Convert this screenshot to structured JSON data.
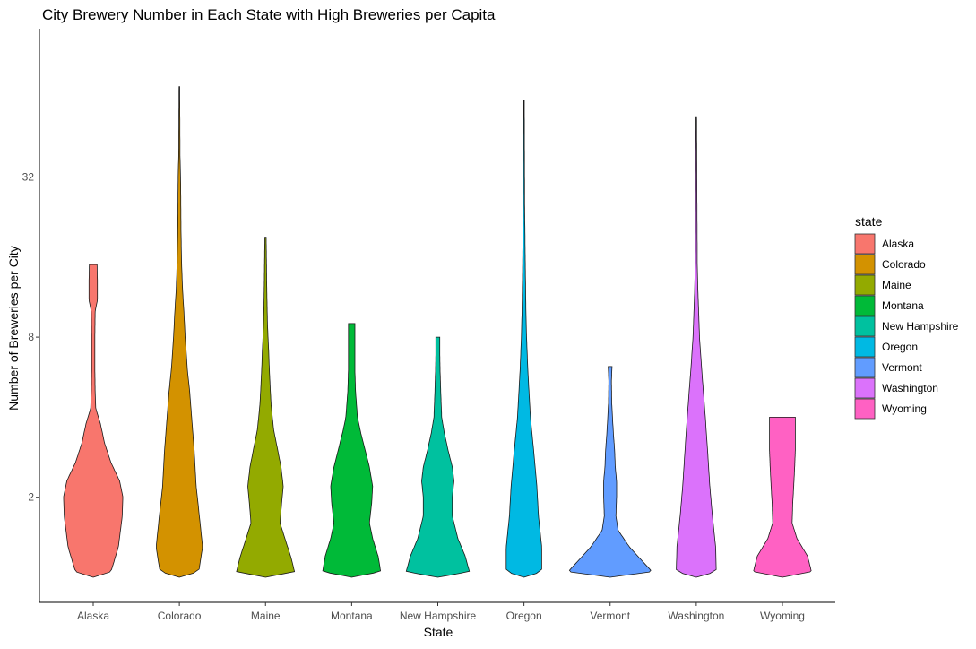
{
  "chart_data": {
    "type": "violin",
    "title": "City Brewery Number in Each State with High Breweries per Capita",
    "xlabel": "State",
    "ylabel": "Number of Breweries per City",
    "y_scale": "log2",
    "y_ticks": [
      {
        "value": 2,
        "label": "2"
      },
      {
        "value": 8,
        "label": "8"
      },
      {
        "value": 32,
        "label": "32"
      }
    ],
    "ylim": [
      0.85,
      80
    ],
    "legend": {
      "title": "state",
      "position": "right"
    },
    "series": [
      {
        "name": "Alaska",
        "color": "#F8766D",
        "max": 15,
        "profile": [
          [
            1,
            0.0
          ],
          [
            1.05,
            0.55
          ],
          [
            1.3,
            0.78
          ],
          [
            1.7,
            0.9
          ],
          [
            2.0,
            0.92
          ],
          [
            2.3,
            0.82
          ],
          [
            2.7,
            0.55
          ],
          [
            3.2,
            0.35
          ],
          [
            3.8,
            0.22
          ],
          [
            4.3,
            0.08
          ],
          [
            5,
            0.06
          ],
          [
            6,
            0.05
          ],
          [
            8,
            0.05
          ],
          [
            10,
            0.06
          ],
          [
            11,
            0.13
          ],
          [
            13,
            0.13
          ],
          [
            15,
            0.12
          ]
        ]
      },
      {
        "name": "Colorado",
        "color": "#D39200",
        "max": 70,
        "profile": [
          [
            1,
            0.0
          ],
          [
            1.05,
            0.6
          ],
          [
            1.3,
            0.72
          ],
          [
            1.7,
            0.62
          ],
          [
            2.2,
            0.52
          ],
          [
            3,
            0.46
          ],
          [
            4,
            0.38
          ],
          [
            5,
            0.32
          ],
          [
            6,
            0.25
          ],
          [
            8,
            0.18
          ],
          [
            10,
            0.14
          ],
          [
            12,
            0.1
          ],
          [
            15,
            0.07
          ],
          [
            20,
            0.05
          ],
          [
            30,
            0.04
          ],
          [
            35,
            0.03
          ],
          [
            38,
            0.02
          ],
          [
            70,
            0.01
          ]
        ]
      },
      {
        "name": "Maine",
        "color": "#93AA00",
        "max": 19,
        "profile": [
          [
            1,
            0.0
          ],
          [
            1.05,
            0.9
          ],
          [
            1.2,
            0.78
          ],
          [
            1.4,
            0.6
          ],
          [
            1.6,
            0.45
          ],
          [
            1.9,
            0.5
          ],
          [
            2.2,
            0.55
          ],
          [
            2.6,
            0.48
          ],
          [
            3,
            0.38
          ],
          [
            3.6,
            0.25
          ],
          [
            4.5,
            0.17
          ],
          [
            6,
            0.12
          ],
          [
            7,
            0.1
          ],
          [
            9,
            0.06
          ],
          [
            12,
            0.04
          ],
          [
            19,
            0.02
          ]
        ]
      },
      {
        "name": "Montana",
        "color": "#00BA38",
        "max": 9,
        "profile": [
          [
            1,
            0.0
          ],
          [
            1.05,
            0.9
          ],
          [
            1.2,
            0.82
          ],
          [
            1.4,
            0.65
          ],
          [
            1.6,
            0.55
          ],
          [
            1.9,
            0.62
          ],
          [
            2.2,
            0.65
          ],
          [
            2.6,
            0.55
          ],
          [
            3,
            0.42
          ],
          [
            3.5,
            0.28
          ],
          [
            4,
            0.18
          ],
          [
            5,
            0.12
          ],
          [
            6,
            0.1
          ],
          [
            7,
            0.1
          ],
          [
            8,
            0.1
          ],
          [
            9,
            0.1
          ]
        ]
      },
      {
        "name": "New Hampshire",
        "color": "#00C19F",
        "max": 8,
        "profile": [
          [
            1,
            0.0
          ],
          [
            1.05,
            0.98
          ],
          [
            1.2,
            0.85
          ],
          [
            1.4,
            0.62
          ],
          [
            1.7,
            0.45
          ],
          [
            2.0,
            0.45
          ],
          [
            2.3,
            0.5
          ],
          [
            2.6,
            0.45
          ],
          [
            3,
            0.32
          ],
          [
            3.5,
            0.2
          ],
          [
            4,
            0.12
          ],
          [
            5,
            0.09
          ],
          [
            6,
            0.07
          ],
          [
            7,
            0.06
          ],
          [
            8,
            0.06
          ]
        ]
      },
      {
        "name": "Oregon",
        "color": "#00B9E3",
        "max": 62,
        "profile": [
          [
            1,
            0.0
          ],
          [
            1.05,
            0.55
          ],
          [
            1.3,
            0.55
          ],
          [
            1.7,
            0.45
          ],
          [
            2.2,
            0.4
          ],
          [
            3,
            0.3
          ],
          [
            4,
            0.2
          ],
          [
            6,
            0.12
          ],
          [
            8,
            0.08
          ],
          [
            10,
            0.06
          ],
          [
            15,
            0.04
          ],
          [
            20,
            0.03
          ],
          [
            25,
            0.02
          ],
          [
            62,
            0.01
          ]
        ]
      },
      {
        "name": "Vermont",
        "color": "#619CFF",
        "max": 6.2,
        "profile": [
          [
            1,
            0.0
          ],
          [
            1.05,
            1.3
          ],
          [
            1.15,
            1.0
          ],
          [
            1.3,
            0.6
          ],
          [
            1.5,
            0.25
          ],
          [
            1.7,
            0.18
          ],
          [
            2.0,
            0.2
          ],
          [
            2.3,
            0.2
          ],
          [
            2.6,
            0.16
          ],
          [
            3,
            0.14
          ],
          [
            3.5,
            0.1
          ],
          [
            4.5,
            0.05
          ],
          [
            5.5,
            0.04
          ],
          [
            6.2,
            0.06
          ]
        ]
      },
      {
        "name": "Washington",
        "color": "#DB72FB",
        "max": 54,
        "profile": [
          [
            1,
            0.0
          ],
          [
            1.05,
            0.62
          ],
          [
            1.3,
            0.6
          ],
          [
            1.7,
            0.5
          ],
          [
            2.2,
            0.42
          ],
          [
            3,
            0.35
          ],
          [
            4,
            0.28
          ],
          [
            5,
            0.22
          ],
          [
            6,
            0.17
          ],
          [
            8,
            0.1
          ],
          [
            12,
            0.05
          ],
          [
            15,
            0.03
          ],
          [
            54,
            0.01
          ]
        ]
      },
      {
        "name": "Wyoming",
        "color": "#FF61C3",
        "max": 4,
        "profile": [
          [
            1,
            0.0
          ],
          [
            1.05,
            0.9
          ],
          [
            1.2,
            0.78
          ],
          [
            1.4,
            0.45
          ],
          [
            1.6,
            0.3
          ],
          [
            1.9,
            0.32
          ],
          [
            2.2,
            0.35
          ],
          [
            2.6,
            0.38
          ],
          [
            3,
            0.4
          ],
          [
            3.5,
            0.4
          ],
          [
            4,
            0.4
          ]
        ]
      }
    ]
  }
}
